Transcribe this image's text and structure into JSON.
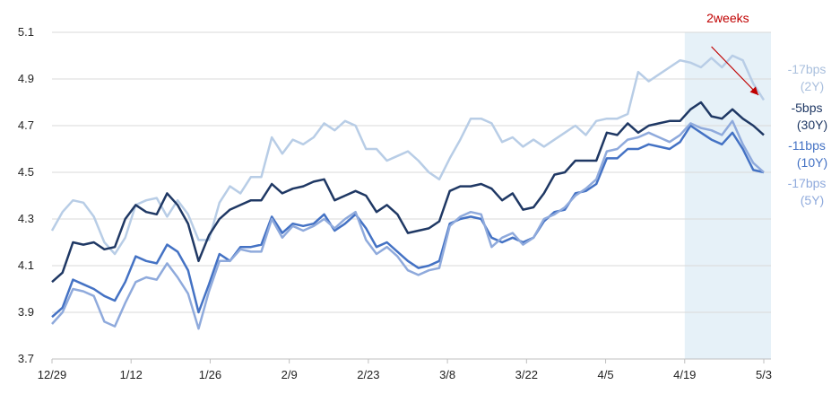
{
  "chart_data": {
    "type": "line",
    "ylim": [
      3.7,
      5.1
    ],
    "yticks": [
      "3.7",
      "3.9",
      "4.1",
      "4.3",
      "4.5",
      "4.7",
      "4.9",
      "5.1"
    ],
    "xticks": [
      "12/29",
      "1/12",
      "1/26",
      "2/9",
      "2/23",
      "3/8",
      "3/22",
      "4/5",
      "4/19",
      "5/3"
    ],
    "grid": "horizontal",
    "highlight": {
      "label": "2weeks",
      "from_tick": "4/19",
      "to_tick": "5/3",
      "color": "#e6f1f8"
    },
    "series": [
      {
        "key": "2y",
        "color": "#b8cde6",
        "values": [
          4.25,
          4.33,
          4.38,
          4.37,
          4.31,
          4.2,
          4.15,
          4.22,
          4.36,
          4.38,
          4.39,
          4.31,
          4.38,
          4.32,
          4.21,
          4.21,
          4.37,
          4.44,
          4.41,
          4.48,
          4.48,
          4.65,
          4.58,
          4.64,
          4.62,
          4.65,
          4.71,
          4.68,
          4.72,
          4.7,
          4.6,
          4.6,
          4.55,
          4.57,
          4.59,
          4.55,
          4.5,
          4.47,
          4.56,
          4.64,
          4.73,
          4.73,
          4.71,
          4.63,
          4.65,
          4.61,
          4.64,
          4.61,
          4.64,
          4.67,
          4.7,
          4.66,
          4.72,
          4.73,
          4.73,
          4.75,
          4.93,
          4.89,
          4.92,
          4.95,
          4.98,
          4.97,
          4.95,
          4.99,
          4.95,
          5.0,
          4.98,
          4.88,
          4.81
        ]
      },
      {
        "key": "30y",
        "color": "#1f3864",
        "values": [
          4.03,
          4.07,
          4.2,
          4.19,
          4.2,
          4.17,
          4.18,
          4.3,
          4.36,
          4.33,
          4.32,
          4.41,
          4.36,
          4.28,
          4.12,
          4.23,
          4.3,
          4.34,
          4.36,
          4.38,
          4.38,
          4.45,
          4.41,
          4.43,
          4.44,
          4.46,
          4.47,
          4.38,
          4.4,
          4.42,
          4.4,
          4.33,
          4.36,
          4.32,
          4.24,
          4.25,
          4.26,
          4.29,
          4.42,
          4.44,
          4.44,
          4.45,
          4.43,
          4.38,
          4.41,
          4.34,
          4.35,
          4.41,
          4.49,
          4.5,
          4.55,
          4.55,
          4.55,
          4.67,
          4.66,
          4.71,
          4.67,
          4.7,
          4.71,
          4.72,
          4.72,
          4.77,
          4.8,
          4.74,
          4.73,
          4.77,
          4.73,
          4.7,
          4.66
        ]
      },
      {
        "key": "10y",
        "color": "#4472c4",
        "values": [
          3.88,
          3.92,
          4.04,
          4.02,
          4.0,
          3.97,
          3.95,
          4.03,
          4.14,
          4.12,
          4.11,
          4.19,
          4.16,
          4.08,
          3.9,
          4.02,
          4.15,
          4.12,
          4.18,
          4.18,
          4.19,
          4.31,
          4.24,
          4.28,
          4.27,
          4.28,
          4.32,
          4.25,
          4.28,
          4.32,
          4.26,
          4.18,
          4.2,
          4.16,
          4.12,
          4.09,
          4.1,
          4.12,
          4.28,
          4.3,
          4.31,
          4.3,
          4.22,
          4.2,
          4.22,
          4.2,
          4.22,
          4.29,
          4.33,
          4.34,
          4.41,
          4.42,
          4.45,
          4.56,
          4.56,
          4.6,
          4.6,
          4.62,
          4.61,
          4.6,
          4.63,
          4.7,
          4.67,
          4.64,
          4.62,
          4.67,
          4.6,
          4.51,
          4.5
        ]
      },
      {
        "key": "5y",
        "color": "#8faadc",
        "values": [
          3.85,
          3.9,
          4.0,
          3.99,
          3.97,
          3.86,
          3.84,
          3.94,
          4.03,
          4.05,
          4.04,
          4.11,
          4.05,
          3.98,
          3.83,
          3.99,
          4.12,
          4.12,
          4.17,
          4.16,
          4.16,
          4.3,
          4.22,
          4.27,
          4.25,
          4.27,
          4.3,
          4.26,
          4.3,
          4.33,
          4.21,
          4.15,
          4.18,
          4.14,
          4.08,
          4.06,
          4.08,
          4.09,
          4.27,
          4.31,
          4.33,
          4.32,
          4.18,
          4.22,
          4.24,
          4.19,
          4.22,
          4.3,
          4.32,
          4.35,
          4.4,
          4.43,
          4.47,
          4.59,
          4.6,
          4.64,
          4.65,
          4.67,
          4.65,
          4.63,
          4.66,
          4.71,
          4.69,
          4.68,
          4.66,
          4.72,
          4.62,
          4.54,
          4.5
        ]
      }
    ],
    "annotations": [
      {
        "key": "2y",
        "line1": "-17bps",
        "line2": "(2Y)",
        "color": "#a9bfdd"
      },
      {
        "key": "30y",
        "line1": "-5bps",
        "line2": "(30Y)",
        "color": "#1f3864"
      },
      {
        "key": "10y",
        "line1": "-11bps",
        "line2": "(10Y)",
        "color": "#4472c4"
      },
      {
        "key": "5y",
        "line1": "-17bps",
        "line2": "(5Y)",
        "color": "#8faadc"
      }
    ],
    "arrow_color": "#c00000"
  }
}
